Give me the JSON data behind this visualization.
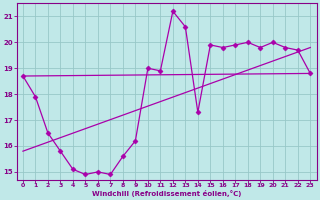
{
  "xlabel": "Windchill (Refroidissement éolien,°C)",
  "bg_color": "#c0e8e8",
  "grid_color": "#98c8c8",
  "line_color": "#aa00aa",
  "xlim": [
    -0.5,
    23.5
  ],
  "ylim": [
    14.7,
    21.5
  ],
  "xticks": [
    0,
    1,
    2,
    3,
    4,
    5,
    6,
    7,
    8,
    9,
    10,
    11,
    12,
    13,
    14,
    15,
    16,
    17,
    18,
    19,
    20,
    21,
    22,
    23
  ],
  "yticks": [
    15,
    16,
    17,
    18,
    19,
    20,
    21
  ],
  "line1_x": [
    0,
    1,
    2,
    3,
    4,
    5,
    6,
    7,
    8,
    9,
    10,
    11,
    12,
    13,
    14,
    15,
    16,
    17,
    18,
    19,
    20,
    21,
    22,
    23
  ],
  "line1_y": [
    18.7,
    17.9,
    16.5,
    15.8,
    15.1,
    14.9,
    15.0,
    14.9,
    15.6,
    16.2,
    19.0,
    18.9,
    21.2,
    20.6,
    17.3,
    19.9,
    19.8,
    19.9,
    20.0,
    19.8,
    20.0,
    19.8,
    19.7,
    18.8
  ],
  "line2_x": [
    0,
    23
  ],
  "line2_y": [
    18.7,
    18.8
  ],
  "line3_x": [
    0,
    23
  ],
  "line3_y": [
    15.8,
    19.8
  ],
  "marker": "D",
  "markersize": 2.5
}
